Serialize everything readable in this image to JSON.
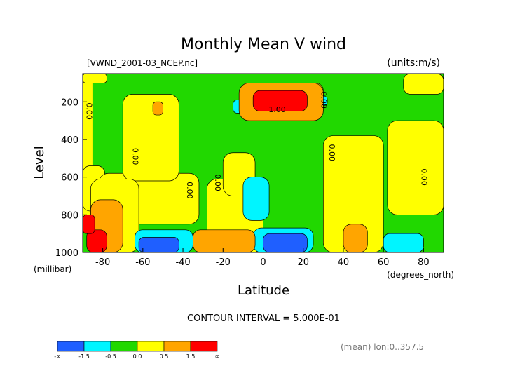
{
  "chart_data": {
    "type": "heatmap",
    "title": "Monthly Mean V wind",
    "file_label": "[VWND_2001-03_NCEP.nc]",
    "units_label": "(units:m/s)",
    "xlabel": "Latitude",
    "x_units_label": "(degrees_north)",
    "ylabel": "Level",
    "y_units_label": "(millibar)",
    "xlim": [
      -90,
      90
    ],
    "ylim": [
      1000,
      50
    ],
    "x_ticks": [
      -80,
      -60,
      -40,
      -20,
      0,
      20,
      40,
      60,
      80
    ],
    "y_ticks": [
      200,
      400,
      600,
      800,
      1000
    ],
    "grid": false,
    "contour_interval_text": "CONTOUR INTERVAL = 5.000E-01",
    "footnote": "(mean) lon:0..357.5",
    "contour_labels": [
      {
        "text": "0.00",
        "lat": -88,
        "level": 250
      },
      {
        "text": "0.00",
        "lat": -65,
        "level": 490
      },
      {
        "text": "0.00",
        "lat": -38,
        "level": 670
      },
      {
        "text": "0.00",
        "lat": -24,
        "level": 630
      },
      {
        "text": "1.00",
        "lat": 7,
        "level": 255
      },
      {
        "text": "0.00",
        "lat": 29,
        "level": 190
      },
      {
        "text": "0.00",
        "lat": 33,
        "level": 470
      },
      {
        "text": "0.00",
        "lat": 79,
        "level": 600
      }
    ],
    "colorbar": {
      "colors": [
        "#1f5fff",
        "#00f5ff",
        "#21d800",
        "#ffff00",
        "#ffa500",
        "#ff0000"
      ],
      "tick_labels": [
        "-∞",
        "-1.5",
        "-0.5",
        "0.0",
        "0.5",
        "1.5",
        "∞"
      ]
    },
    "regions_note": "sampled fill classes by latitude (x) and level (y)",
    "classes": {
      "c1": "#1f5fff",
      "c2": "#00f5ff",
      "c3": "#21d800",
      "c4": "#ffff00",
      "c5": "#ffa500",
      "c6": "#ff0000"
    },
    "blobs": [
      {
        "cls": "c3",
        "lat0": -90,
        "lat1": 90,
        "lev0": 50,
        "lev1": 1000
      },
      {
        "cls": "c4",
        "lat0": -90,
        "lat1": -85,
        "lev0": 50,
        "lev1": 870
      },
      {
        "cls": "c4",
        "lat0": -90,
        "lat1": -78,
        "lev0": 50,
        "lev1": 100
      },
      {
        "cls": "c4",
        "lat0": -90,
        "lat1": -79,
        "lev0": 540,
        "lev1": 780
      },
      {
        "cls": "c4",
        "lat0": -82,
        "lat1": -32,
        "lev0": 580,
        "lev1": 850
      },
      {
        "cls": "c4",
        "lat0": -70,
        "lat1": -42,
        "lev0": 160,
        "lev1": 620
      },
      {
        "cls": "c4",
        "lat0": -86,
        "lat1": -62,
        "lev0": 610,
        "lev1": 1000
      },
      {
        "cls": "c4",
        "lat0": -28,
        "lat1": 0,
        "lev0": 610,
        "lev1": 1000
      },
      {
        "cls": "c4",
        "lat0": -20,
        "lat1": -4,
        "lev0": 470,
        "lev1": 700
      },
      {
        "cls": "c4",
        "lat0": -5,
        "lat1": 30,
        "lev0": 100,
        "lev1": 220
      },
      {
        "cls": "c4",
        "lat0": 30,
        "lat1": 60,
        "lev0": 380,
        "lev1": 1000
      },
      {
        "cls": "c4",
        "lat0": 62,
        "lat1": 90,
        "lev0": 300,
        "lev1": 800
      },
      {
        "cls": "c4",
        "lat0": 70,
        "lat1": 90,
        "lev0": 50,
        "lev1": 160
      },
      {
        "cls": "c2",
        "lat0": -15,
        "lat1": -9,
        "lev0": 190,
        "lev1": 260
      },
      {
        "cls": "c2",
        "lat0": -10,
        "lat1": 3,
        "lev0": 600,
        "lev1": 830
      },
      {
        "cls": "c2",
        "lat0": -64,
        "lat1": -35,
        "lev0": 880,
        "lev1": 1000
      },
      {
        "cls": "c2",
        "lat0": -5,
        "lat1": 25,
        "lev0": 870,
        "lev1": 1000
      },
      {
        "cls": "c2",
        "lat0": 60,
        "lat1": 80,
        "lev0": 900,
        "lev1": 1000
      },
      {
        "cls": "c2",
        "lat0": 25,
        "lat1": 32,
        "lev0": 170,
        "lev1": 220
      },
      {
        "cls": "c1",
        "lat0": -62,
        "lat1": -42,
        "lev0": 920,
        "lev1": 1000
      },
      {
        "cls": "c1",
        "lat0": 0,
        "lat1": 22,
        "lev0": 900,
        "lev1": 1000
      },
      {
        "cls": "c5",
        "lat0": -55,
        "lat1": -50,
        "lev0": 200,
        "lev1": 270
      },
      {
        "cls": "c5",
        "lat0": -86,
        "lat1": -70,
        "lev0": 720,
        "lev1": 1000
      },
      {
        "cls": "c5",
        "lat0": -35,
        "lat1": -4,
        "lev0": 880,
        "lev1": 1000
      },
      {
        "cls": "c5",
        "lat0": -12,
        "lat1": 30,
        "lev0": 100,
        "lev1": 300
      },
      {
        "cls": "c5",
        "lat0": 40,
        "lat1": 52,
        "lev0": 850,
        "lev1": 1000
      },
      {
        "cls": "c6",
        "lat0": -5,
        "lat1": 22,
        "lev0": 140,
        "lev1": 250
      },
      {
        "cls": "c6",
        "lat0": -88,
        "lat1": -78,
        "lev0": 880,
        "lev1": 1000
      },
      {
        "cls": "c6",
        "lat0": -90,
        "lat1": -84,
        "lev0": 800,
        "lev1": 900
      }
    ]
  }
}
